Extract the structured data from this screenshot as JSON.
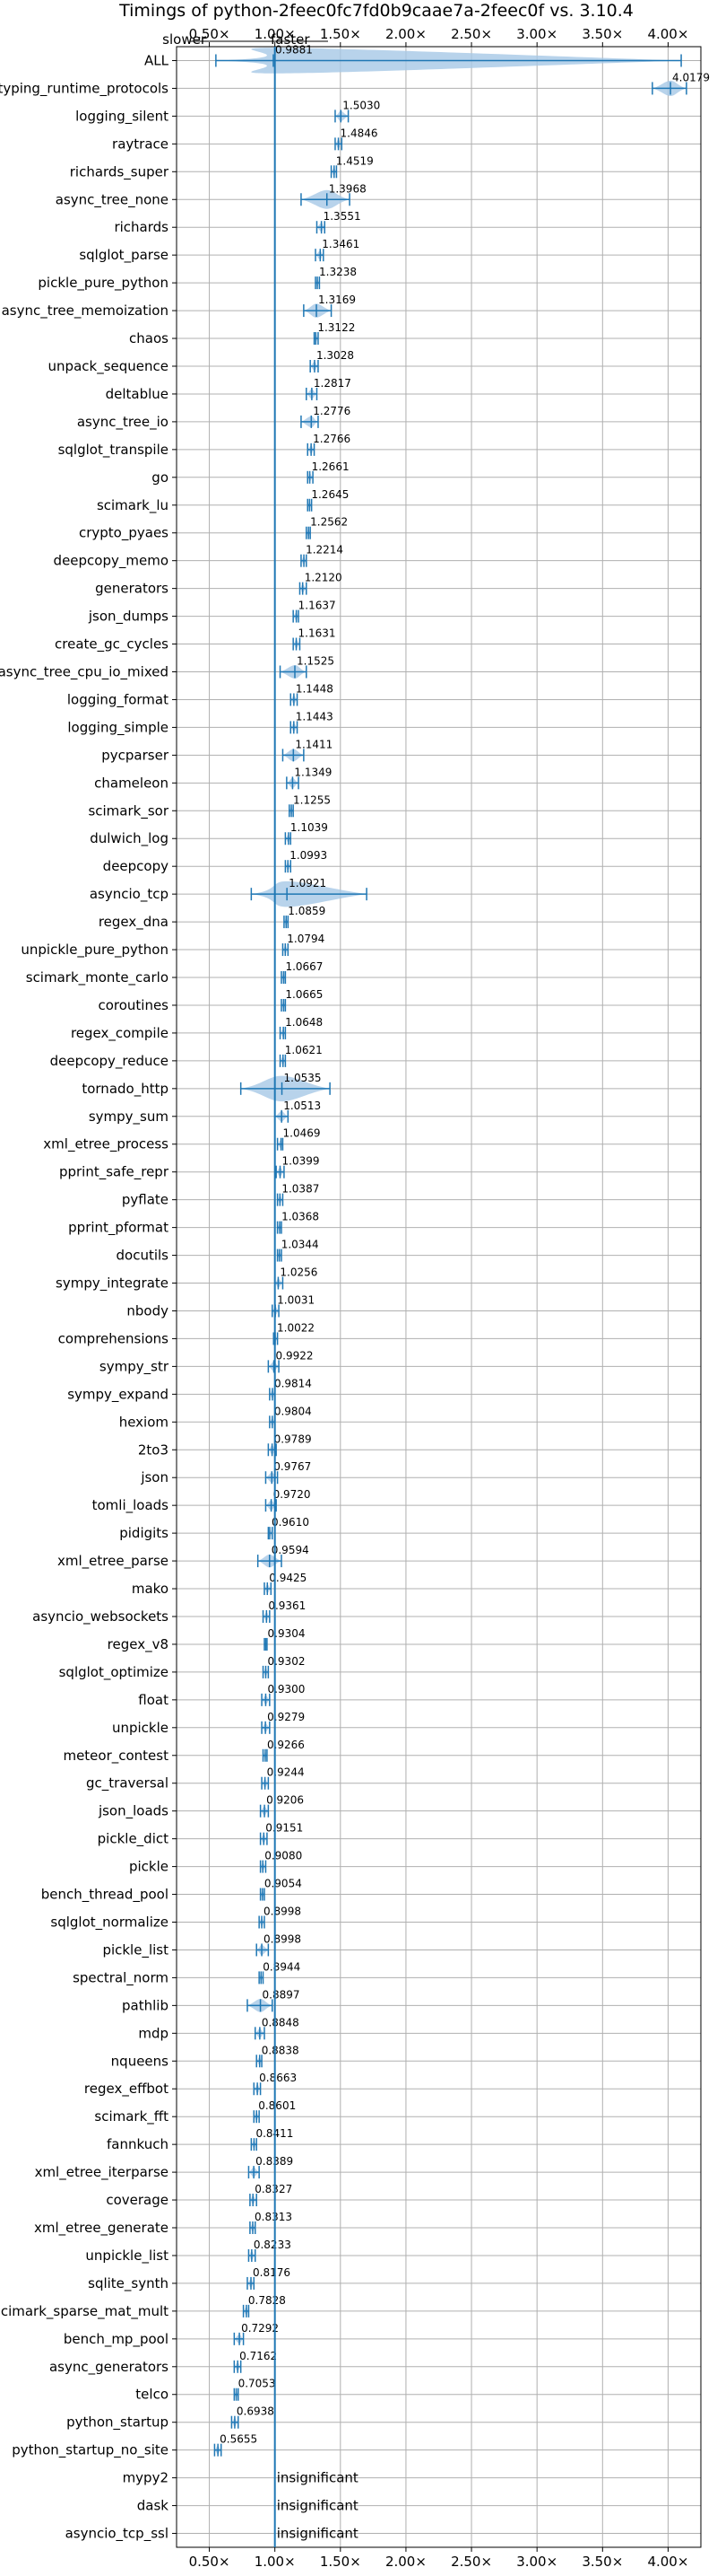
{
  "chart_data": {
    "type": "violin",
    "title": "Timings of python-2feec0fc7fd0b9caae7a-2feec0f vs. 3.10.4",
    "annotations": {
      "slower": "slower",
      "faster": "faster"
    },
    "xlim": [
      0.25,
      4.25
    ],
    "x_ticks": [
      0.5,
      1.0,
      1.5,
      2.0,
      2.5,
      3.0,
      3.5,
      4.0
    ],
    "x_tick_labels": [
      "0.50×",
      "1.00×",
      "1.50×",
      "2.00×",
      "2.50×",
      "3.00×",
      "3.50×",
      "4.00×"
    ],
    "reference_x": 1.0,
    "grid": true,
    "colors": {
      "accent": "#1f77b4",
      "fill": "#a6c8e6",
      "median_outlier": "#d62728"
    },
    "insignificant_label": "insignificant",
    "categories": [
      "ALL",
      "typing_runtime_protocols",
      "logging_silent",
      "raytrace",
      "richards_super",
      "async_tree_none",
      "richards",
      "sqlglot_parse",
      "pickle_pure_python",
      "async_tree_memoization",
      "chaos",
      "unpack_sequence",
      "deltablue",
      "async_tree_io",
      "sqlglot_transpile",
      "go",
      "scimark_lu",
      "crypto_pyaes",
      "deepcopy_memo",
      "generators",
      "json_dumps",
      "create_gc_cycles",
      "async_tree_cpu_io_mixed",
      "logging_format",
      "logging_simple",
      "pycparser",
      "chameleon",
      "scimark_sor",
      "dulwich_log",
      "deepcopy",
      "asyncio_tcp",
      "regex_dna",
      "unpickle_pure_python",
      "scimark_monte_carlo",
      "coroutines",
      "regex_compile",
      "deepcopy_reduce",
      "tornado_http",
      "sympy_sum",
      "xml_etree_process",
      "pprint_safe_repr",
      "pyflate",
      "pprint_pformat",
      "docutils",
      "sympy_integrate",
      "nbody",
      "comprehensions",
      "sympy_str",
      "sympy_expand",
      "hexiom",
      "2to3",
      "json",
      "tomli_loads",
      "pidigits",
      "xml_etree_parse",
      "mako",
      "asyncio_websockets",
      "regex_v8",
      "sqlglot_optimize",
      "float",
      "unpickle",
      "meteor_contest",
      "gc_traversal",
      "json_loads",
      "pickle_dict",
      "pickle",
      "bench_thread_pool",
      "sqlglot_normalize",
      "pickle_list",
      "spectral_norm",
      "pathlib",
      "mdp",
      "nqueens",
      "regex_effbot",
      "scimark_fft",
      "fannkuch",
      "xml_etree_iterparse",
      "coverage",
      "xml_etree_generate",
      "unpickle_list",
      "sqlite_synth",
      "scimark_sparse_mat_mult",
      "bench_mp_pool",
      "async_generators",
      "telco",
      "python_startup",
      "python_startup_no_site",
      "mypy2",
      "dask",
      "asyncio_tcp_ssl"
    ],
    "values": [
      0.9881,
      4.0179,
      1.503,
      1.4846,
      1.4519,
      1.3968,
      1.3551,
      1.3461,
      1.3238,
      1.3169,
      1.3122,
      1.3028,
      1.2817,
      1.2776,
      1.2766,
      1.2661,
      1.2645,
      1.2562,
      1.2214,
      1.212,
      1.1637,
      1.1631,
      1.1525,
      1.1448,
      1.1443,
      1.1411,
      1.1349,
      1.1255,
      1.1039,
      1.0993,
      1.0921,
      1.0859,
      1.0794,
      1.0667,
      1.0665,
      1.0648,
      1.0621,
      1.0535,
      1.0513,
      1.0469,
      1.0399,
      1.0387,
      1.0368,
      1.0344,
      1.0256,
      1.0031,
      1.0022,
      0.9922,
      0.9814,
      0.9804,
      0.9789,
      0.9767,
      0.972,
      0.961,
      0.9594,
      0.9425,
      0.9361,
      0.9304,
      0.9302,
      0.93,
      0.9279,
      0.9266,
      0.9244,
      0.9206,
      0.9151,
      0.908,
      0.9054,
      0.8998,
      0.8998,
      0.8944,
      0.8897,
      0.8848,
      0.8838,
      0.8663,
      0.8601,
      0.8411,
      0.8389,
      0.8327,
      0.8313,
      0.8233,
      0.8176,
      0.7828,
      0.7292,
      0.7162,
      0.7053,
      0.6938,
      0.5655,
      null,
      null,
      null
    ],
    "value_labels": [
      "0.9881",
      "4.0179",
      "1.5030",
      "1.4846",
      "1.4519",
      "1.3968",
      "1.3551",
      "1.3461",
      "1.3238",
      "1.3169",
      "1.3122",
      "1.3028",
      "1.2817",
      "1.2776",
      "1.2766",
      "1.2661",
      "1.2645",
      "1.2562",
      "1.2214",
      "1.2120",
      "1.1637",
      "1.1631",
      "1.1525",
      "1.1448",
      "1.1443",
      "1.1411",
      "1.1349",
      "1.1255",
      "1.1039",
      "1.0993",
      "1.0921",
      "1.0859",
      "1.0794",
      "1.0667",
      "1.0665",
      "1.0648",
      "1.0621",
      "1.0535",
      "1.0513",
      "1.0469",
      "1.0399",
      "1.0387",
      "1.0368",
      "1.0344",
      "1.0256",
      "1.0031",
      "1.0022",
      "0.9922",
      "0.9814",
      "0.9804",
      "0.9789",
      "0.9767",
      "0.9720",
      "0.9610",
      "0.9594",
      "0.9425",
      "0.9361",
      "0.9304",
      "0.9302",
      "0.9300",
      "0.9279",
      "0.9266",
      "0.9244",
      "0.9206",
      "0.9151",
      "0.9080",
      "0.9054",
      "0.8998",
      "0.8998",
      "0.8944",
      "0.8897",
      "0.8848",
      "0.8838",
      "0.8663",
      "0.8601",
      "0.8411",
      "0.8389",
      "0.8327",
      "0.8313",
      "0.8233",
      "0.8176",
      "0.7828",
      "0.7292",
      "0.7162",
      "0.7053",
      "0.6938",
      "0.5655",
      "",
      "",
      ""
    ],
    "ranges": [
      [
        0.55,
        4.1
      ],
      [
        3.88,
        4.14
      ],
      [
        1.46,
        1.56
      ],
      [
        1.46,
        1.51
      ],
      [
        1.43,
        1.47
      ],
      [
        1.2,
        1.57
      ],
      [
        1.32,
        1.38
      ],
      [
        1.31,
        1.37
      ],
      [
        1.31,
        1.34
      ],
      [
        1.22,
        1.43
      ],
      [
        1.3,
        1.33
      ],
      [
        1.27,
        1.33
      ],
      [
        1.24,
        1.32
      ],
      [
        1.2,
        1.33
      ],
      [
        1.25,
        1.3
      ],
      [
        1.25,
        1.29
      ],
      [
        1.25,
        1.28
      ],
      [
        1.24,
        1.27
      ],
      [
        1.2,
        1.24
      ],
      [
        1.19,
        1.24
      ],
      [
        1.14,
        1.18
      ],
      [
        1.14,
        1.19
      ],
      [
        1.04,
        1.24
      ],
      [
        1.12,
        1.17
      ],
      [
        1.12,
        1.17
      ],
      [
        1.06,
        1.22
      ],
      [
        1.09,
        1.18
      ],
      [
        1.11,
        1.14
      ],
      [
        1.08,
        1.12
      ],
      [
        1.08,
        1.12
      ],
      [
        0.82,
        1.7
      ],
      [
        1.07,
        1.1
      ],
      [
        1.06,
        1.1
      ],
      [
        1.05,
        1.08
      ],
      [
        1.05,
        1.08
      ],
      [
        1.04,
        1.08
      ],
      [
        1.04,
        1.08
      ],
      [
        0.74,
        1.42
      ],
      [
        1.0,
        1.1
      ],
      [
        1.02,
        1.06
      ],
      [
        1.01,
        1.07
      ],
      [
        1.02,
        1.06
      ],
      [
        1.02,
        1.05
      ],
      [
        1.02,
        1.05
      ],
      [
        1.0,
        1.06
      ],
      [
        0.98,
        1.03
      ],
      [
        0.99,
        1.02
      ],
      [
        0.95,
        1.03
      ],
      [
        0.96,
        1.0
      ],
      [
        0.96,
        1.0
      ],
      [
        0.95,
        1.01
      ],
      [
        0.93,
        1.02
      ],
      [
        0.93,
        1.01
      ],
      [
        0.95,
        0.98
      ],
      [
        0.87,
        1.05
      ],
      [
        0.92,
        0.97
      ],
      [
        0.91,
        0.96
      ],
      [
        0.92,
        0.94
      ],
      [
        0.91,
        0.95
      ],
      [
        0.9,
        0.96
      ],
      [
        0.9,
        0.96
      ],
      [
        0.91,
        0.94
      ],
      [
        0.9,
        0.95
      ],
      [
        0.89,
        0.95
      ],
      [
        0.89,
        0.94
      ],
      [
        0.89,
        0.93
      ],
      [
        0.89,
        0.92
      ],
      [
        0.88,
        0.92
      ],
      [
        0.86,
        0.95
      ],
      [
        0.88,
        0.91
      ],
      [
        0.79,
        0.98
      ],
      [
        0.85,
        0.92
      ],
      [
        0.86,
        0.9
      ],
      [
        0.84,
        0.89
      ],
      [
        0.84,
        0.88
      ],
      [
        0.82,
        0.86
      ],
      [
        0.8,
        0.88
      ],
      [
        0.81,
        0.86
      ],
      [
        0.81,
        0.85
      ],
      [
        0.8,
        0.85
      ],
      [
        0.79,
        0.84
      ],
      [
        0.76,
        0.8
      ],
      [
        0.69,
        0.76
      ],
      [
        0.69,
        0.74
      ],
      [
        0.69,
        0.72
      ],
      [
        0.67,
        0.72
      ],
      [
        0.54,
        0.59
      ],
      null,
      null,
      null
    ]
  }
}
